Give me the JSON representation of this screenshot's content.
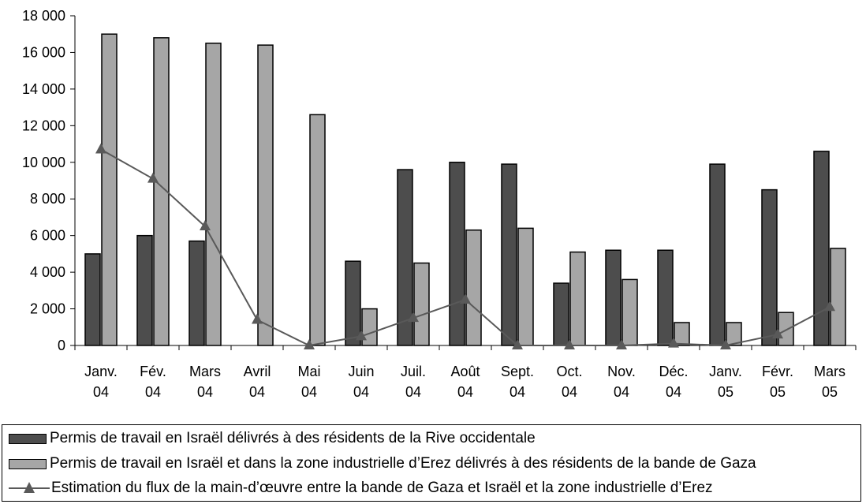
{
  "chart_data": {
    "type": "bar",
    "categories": [
      [
        "Janv.",
        "04"
      ],
      [
        "Fév.",
        "04"
      ],
      [
        "Mars",
        "04"
      ],
      [
        "Avril",
        "04"
      ],
      [
        "Mai",
        "04"
      ],
      [
        "Juin",
        "04"
      ],
      [
        "Juil.",
        "04"
      ],
      [
        "Août",
        "04"
      ],
      [
        "Sept.",
        "04"
      ],
      [
        "Oct.",
        "04"
      ],
      [
        "Nov.",
        "04"
      ],
      [
        "Déc.",
        "04"
      ],
      [
        "Janv.",
        "05"
      ],
      [
        "Févr.",
        "05"
      ],
      [
        "Mars",
        "05"
      ]
    ],
    "ylim": [
      0,
      18000
    ],
    "yticks": [
      0,
      2000,
      4000,
      6000,
      8000,
      10000,
      12000,
      14000,
      16000,
      18000
    ],
    "ytick_labels": [
      "0",
      "2 000",
      "4 000",
      "6 000",
      "8 000",
      "10 000",
      "12 000",
      "14 000",
      "16 000",
      "18 000"
    ],
    "grid": false,
    "legend_placement": "bottom",
    "series": [
      {
        "name": "Permis de travail en Israël délivrés à des résidents de la Rive occidentale",
        "type": "bar",
        "color": "#4d4d4d",
        "values": [
          5000,
          6000,
          5700,
          0,
          0,
          4600,
          9600,
          10000,
          9900,
          3400,
          5200,
          5200,
          9900,
          8500,
          10600
        ]
      },
      {
        "name": "Permis de travail en Israël et dans la zone industrielle d’Erez délivrés à des résidents de la bande de Gaza",
        "type": "bar",
        "color": "#a6a6a6",
        "values": [
          17000,
          16800,
          16500,
          16400,
          12600,
          2000,
          4500,
          6300,
          6400,
          5100,
          3600,
          1250,
          1250,
          1800,
          5300
        ]
      },
      {
        "name": "Estimation du flux de la main-d’œuvre entre la bande de Gaza et Israël et la zone industrielle d’Erez",
        "type": "line",
        "color": "#595959",
        "values": [
          10700,
          9100,
          6500,
          1400,
          0,
          500,
          1500,
          2500,
          0,
          0,
          0,
          100,
          0,
          600,
          2100
        ]
      }
    ]
  }
}
